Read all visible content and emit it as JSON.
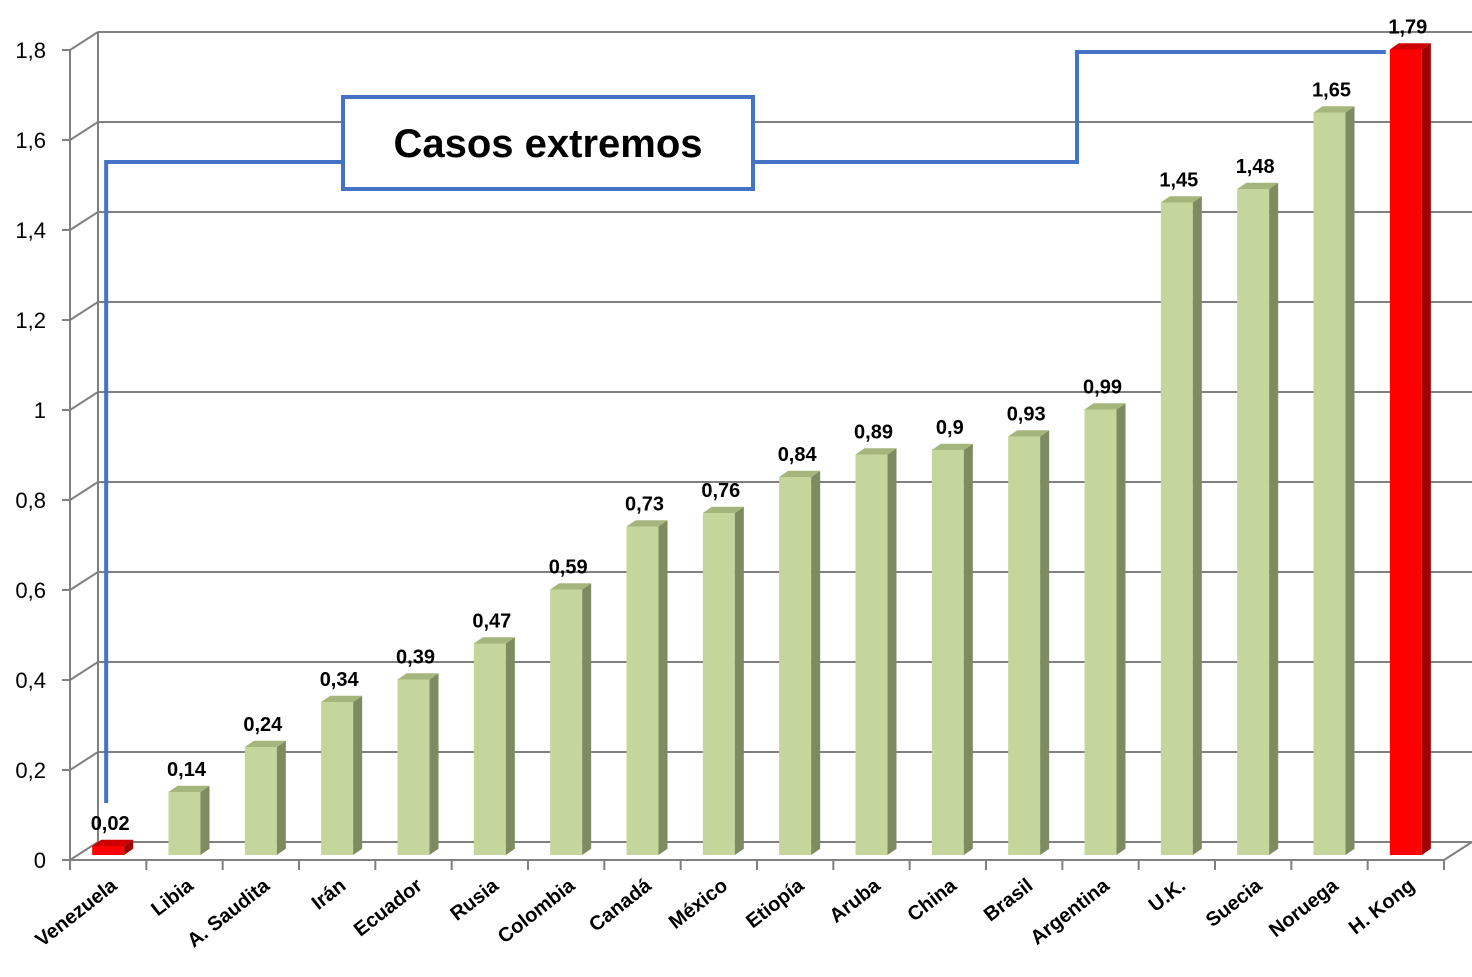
{
  "chart_data": {
    "type": "bar",
    "categories": [
      "Venezuela",
      "Libia",
      "A. Saudita",
      "Irán",
      "Ecuador",
      "Rusia",
      "Colombia",
      "Canadá",
      "México",
      "Etiopía",
      "Aruba",
      "China",
      "Brasil",
      "Argentina",
      "U.K.",
      "Suecia",
      "Noruega",
      "H. Kong"
    ],
    "values": [
      0.02,
      0.14,
      0.24,
      0.34,
      0.39,
      0.47,
      0.59,
      0.73,
      0.76,
      0.84,
      0.89,
      0.9,
      0.93,
      0.99,
      1.45,
      1.48,
      1.65,
      1.79
    ],
    "data_labels": [
      "0,02",
      "0,14",
      "0,24",
      "0,34",
      "0,39",
      "0,47",
      "0,59",
      "0,73",
      "0,76",
      "0,84",
      "0,89",
      "0,9",
      "0,93",
      "0,99",
      "1,45",
      "1,48",
      "1,65",
      "1,79"
    ],
    "highlighted": [
      "Venezuela",
      "H. Kong"
    ],
    "yticks": [
      0,
      0.2,
      0.4,
      0.6,
      0.8,
      1,
      1.2,
      1.4,
      1.6,
      1.8
    ],
    "ytick_labels": [
      "0",
      "0,2",
      "0,4",
      "0,6",
      "0,8",
      "1",
      "1,2",
      "1,4",
      "1,6",
      "1,8"
    ],
    "ylim": [
      0,
      1.8
    ],
    "grid": true,
    "style": "3d-column",
    "colors": {
      "bar_front": "#c4d69b",
      "bar_side": "#7e8a60",
      "bar_top": "#a5b67c",
      "highlight_front": "#ff0000",
      "highlight_side": "#a00000",
      "highlight_top": "#cc0000",
      "grid": "#808080",
      "annotation": "#4472c4"
    },
    "annotation": {
      "text": "Casos extremos",
      "connects": [
        "Venezuela",
        "H. Kong"
      ]
    }
  }
}
